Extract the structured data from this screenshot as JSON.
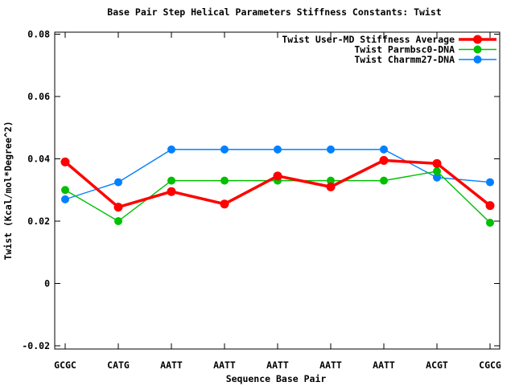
{
  "chart_data": {
    "type": "line",
    "title": "Base Pair Step Helical Parameters Stiffness Constants: Twist",
    "xlabel": "Sequence Base Pair",
    "ylabel": "Twist (Kcal/mol*Degree^2)",
    "categories": [
      "GCGC",
      "CATG",
      "AATT",
      "AATT",
      "AATT",
      "AATT",
      "AATT",
      "ACGT",
      "CGCG"
    ],
    "series": [
      {
        "name": "Twist User-MD Stiffness Average",
        "color": "#ff0000",
        "line_width": 3.5,
        "marker": "filled-circle",
        "marker_radius": 5.5,
        "values": [
          0.039,
          0.0245,
          0.0295,
          0.0255,
          0.0345,
          0.031,
          0.0395,
          0.0385,
          0.025
        ]
      },
      {
        "name": "Twist Parmbsc0-DNA",
        "color": "#00c000",
        "line_width": 1.4,
        "marker": "filled-circle",
        "marker_radius": 5,
        "values": [
          0.03,
          0.02,
          0.033,
          0.033,
          0.033,
          0.033,
          0.033,
          0.036,
          0.0195
        ]
      },
      {
        "name": "Twist Charmm27-DNA",
        "color": "#0080ff",
        "line_width": 1.4,
        "marker": "filled-circle",
        "marker_radius": 5,
        "values": [
          0.027,
          0.0325,
          0.043,
          0.043,
          0.043,
          0.043,
          0.043,
          0.034,
          0.0325
        ]
      }
    ],
    "ylim": [
      -0.02,
      0.08
    ],
    "yticks": {
      "values": [
        -0.02,
        0,
        0.02,
        0.04,
        0.06,
        0.08
      ],
      "labels": [
        "-0.02",
        "0",
        "0.02",
        "0.04",
        "0.06",
        "0.08"
      ]
    },
    "grid": false,
    "legend_position": "top-right-inside",
    "axis_color": "#000000",
    "background_color": "#ffffff"
  }
}
